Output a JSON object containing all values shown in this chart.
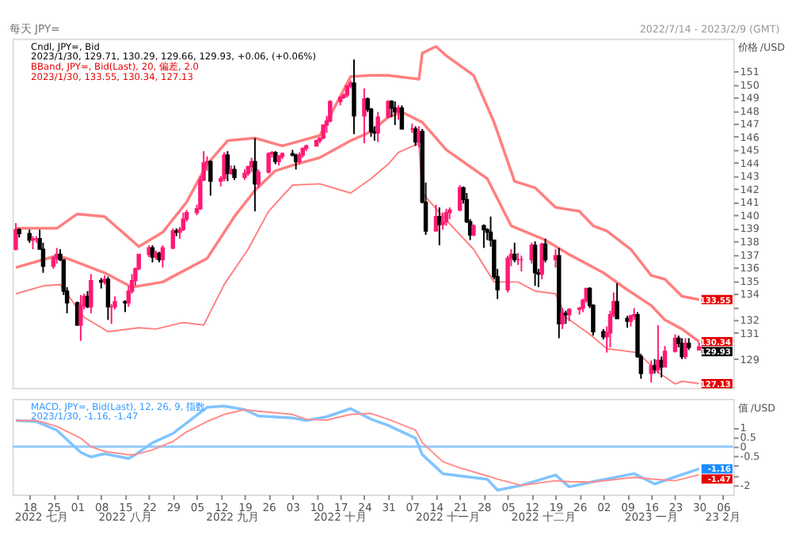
{
  "chart_data": [
    {
      "type": "candlestick",
      "title": "每天 JPY=",
      "subtitle": "2022/7/14 - 2023/2/9 (GMT)",
      "ylabel": "价格 /USD",
      "tick_labels": "y",
      "colors": [
        "#ff1a75",
        "#000000",
        "#000000",
        "#ff1a75",
        "#ff1a75",
        "#000000",
        "#000000",
        "#ff1a75",
        "#ff1a75",
        "#000000",
        "#000000",
        "#000000",
        "#000000",
        "#ff1a75",
        "#ff1a75",
        "#000000",
        "#ff1a75",
        "#000000",
        "#ff1a75",
        "#000000",
        "#ff1a75",
        "#ff1a75",
        "#000000",
        "#ff1a75",
        "#ff1a75",
        "#ff1a75",
        "#ff1a75",
        "#ff1a75",
        "#000000",
        "#ff1a75",
        "#000000",
        "#ff1a75",
        "#ff1a75",
        "#000000",
        "#ff1a75",
        "#ff1a75",
        "#ff1a75",
        "#ff1a75",
        "#ff1a75",
        "#ff1a75",
        "#ff1a75",
        "#000000",
        "#ff1a75",
        "#ff1a75",
        "#000000",
        "#ff1a75",
        "#000000",
        "#ff1a75",
        "#ff1a75",
        "#ff1a75",
        "#000000",
        "#ff1a75",
        "#ff1a75",
        "#ff1a75",
        "#000000",
        "#ff1a75",
        "#ff1a75",
        "#000000",
        "#000000",
        "#ff1a75",
        "#ff1a75",
        "#ff1a75",
        "#ff1a75",
        "#ff1a75",
        "#ff1a75",
        "#ff1a75",
        "#ff1a75",
        "#ff1a75",
        "#ff1a75",
        "#ff1a75",
        "#ff1a75",
        "#000000",
        "#ff1a75",
        "#000000",
        "#000000",
        "#000000",
        "#ff1a75",
        "#ff1a75",
        "#000000",
        "#000000",
        "#ff1a75",
        "#000000",
        "#ff1a75",
        "#000000",
        "#ff1a75",
        "#000000",
        "#000000",
        "#ff1a75",
        "#000000",
        "#ff1a75",
        "#ff1a75",
        "#ff1a75",
        "#ff1a75",
        "#000000",
        "#000000",
        "#000000",
        "#ff1a75",
        "#000000",
        "#000000",
        "#000000",
        "#000000",
        "#000000",
        "#ff1a75",
        "#ff1a75",
        "#000000",
        "#ff1a75",
        "#ff1a75",
        "#ff1a75",
        "#000000",
        "#000000",
        "#ff1a75",
        "#000000",
        "#ff1a75",
        "#000000",
        "#ff1a75",
        "#000000",
        "#ff1a75",
        "#ff1a75",
        "#ff1a75",
        "#ff1a75",
        "#000000",
        "#000000",
        "#000000",
        "#ff1a75",
        "#ff1a75",
        "#ff1a75",
        "#000000",
        "#000000",
        "#ff1a75",
        "#ff1a75",
        "#000000",
        "#000000",
        "#ff1a75",
        "#000000",
        "#ff1a75",
        "#000000",
        "#ff1a75",
        "#ff1a75",
        "#000000",
        "#000000",
        "#ff1a75",
        "#000000",
        "#ff1a75"
      ],
      "annotations": [
        "Cndl, JPY=, Bid",
        "2023/1/30, 129.71, 130.29, 129.66, 129.93, +0.06, (+0.06%)",
        "BBand, JPY=, Bid(Last), 20, 偏差, 2.0",
        "2023/1/30, 133.55, 130.34, 127.13",
        {
          "text": "133.55",
          "x": "2023-01-30",
          "y": 133.55
        },
        {
          "text": "130.34",
          "x": "2023-01-30",
          "y": 130.34
        },
        {
          "text": "129.93",
          "x": "2023-01-30",
          "y": 129.93
        },
        {
          "text": "127.13",
          "x": "2023-01-30",
          "y": 127.13
        }
      ],
      "xlim": [
        "2022-07-13",
        "2023-02-09"
      ],
      "ylim": [
        126.8,
        153.5
      ],
      "yticks": [
        129,
        131,
        132,
        {
          "value": 133,
          "label": null
        },
        134,
        135,
        136,
        137,
        138,
        139,
        140,
        141,
        142,
        143,
        144,
        145,
        146,
        147,
        148,
        149,
        150,
        151
      ],
      "x": [
        "2022-07-14",
        "2022-07-15",
        "2022-07-18",
        "2022-07-19",
        "2022-07-20",
        "2022-07-21",
        "2022-07-22",
        "2022-07-25",
        "2022-07-26",
        "2022-07-27",
        "2022-07-28",
        "2022-07-29",
        "2022-08-01",
        "2022-08-02",
        "2022-08-03",
        "2022-08-04",
        "2022-08-05",
        "2022-08-08",
        "2022-08-09",
        "2022-08-10",
        "2022-08-11",
        "2022-08-12",
        "2022-08-15",
        "2022-08-16",
        "2022-08-17",
        "2022-08-18",
        "2022-08-19",
        "2022-08-22",
        "2022-08-23",
        "2022-08-24",
        "2022-08-25",
        "2022-08-26",
        "2022-08-29",
        "2022-08-30",
        "2022-08-31",
        "2022-09-01",
        "2022-09-02",
        "2022-09-05",
        "2022-09-06",
        "2022-09-07",
        "2022-09-08",
        "2022-09-09",
        "2022-09-12",
        "2022-09-13",
        "2022-09-14",
        "2022-09-15",
        "2022-09-16",
        "2022-09-19",
        "2022-09-20",
        "2022-09-21",
        "2022-09-22",
        "2022-09-23",
        "2022-09-26",
        "2022-09-27",
        "2022-09-28",
        "2022-09-29",
        "2022-09-30",
        "2022-10-03",
        "2022-10-04",
        "2022-10-05",
        "2022-10-06",
        "2022-10-07",
        "2022-10-10",
        "2022-10-11",
        "2022-10-12",
        "2022-10-13",
        "2022-10-14",
        "2022-10-17",
        "2022-10-18",
        "2022-10-19",
        "2022-10-20",
        "2022-10-21",
        "2022-10-24",
        "2022-10-25",
        "2022-10-26",
        "2022-10-27",
        "2022-10-28",
        "2022-10-31",
        "2022-11-01",
        "2022-11-02",
        "2022-11-03",
        "2022-11-04",
        "2022-11-07",
        "2022-11-08",
        "2022-11-09",
        "2022-11-10",
        "2022-11-11",
        "2022-11-14",
        "2022-11-15",
        "2022-11-16",
        "2022-11-17",
        "2022-11-18",
        "2022-11-21",
        "2022-11-22",
        "2022-11-23",
        "2022-11-24",
        "2022-11-25",
        "2022-11-28",
        "2022-11-29",
        "2022-11-30",
        "2022-12-01",
        "2022-12-02",
        "2022-12-05",
        "2022-12-06",
        "2022-12-07",
        "2022-12-08",
        "2022-12-09",
        "2022-12-12",
        "2022-12-13",
        "2022-12-14",
        "2022-12-15",
        "2022-12-16",
        "2022-12-19",
        "2022-12-20",
        "2022-12-21",
        "2022-12-22",
        "2022-12-23",
        "2022-12-26",
        "2022-12-27",
        "2022-12-28",
        "2022-12-29",
        "2022-12-30",
        "2023-01-02",
        "2023-01-03",
        "2023-01-04",
        "2023-01-05",
        "2023-01-06",
        "2023-01-09",
        "2023-01-10",
        "2023-01-11",
        "2023-01-12",
        "2023-01-13",
        "2023-01-16",
        "2023-01-17",
        "2023-01-18",
        "2023-01-19",
        "2023-01-20",
        "2023-01-23",
        "2023-01-24",
        "2023-01-25",
        "2023-01-26",
        "2023-01-27",
        "2023-01-30"
      ],
      "ohlc": [
        [
          137.4,
          139.4,
          137.3,
          138.9
        ],
        [
          138.9,
          139.0,
          138.3,
          138.6
        ],
        [
          138.6,
          138.9,
          137.9,
          138.1
        ],
        [
          138.1,
          138.4,
          137.4,
          138.2
        ],
        [
          138.2,
          138.4,
          137.9,
          138.2
        ],
        [
          138.2,
          138.9,
          137.4,
          137.4
        ],
        [
          137.4,
          137.9,
          135.6,
          136.1
        ],
        [
          136.1,
          136.9,
          135.9,
          136.7
        ],
        [
          136.7,
          137.5,
          136.3,
          137.0
        ],
        [
          137.0,
          137.4,
          136.5,
          136.6
        ],
        [
          136.6,
          136.6,
          133.9,
          134.2
        ],
        [
          134.2,
          134.5,
          132.5,
          133.3
        ],
        [
          133.3,
          133.4,
          131.6,
          131.6
        ],
        [
          131.6,
          133.9,
          130.4,
          133.1
        ],
        [
          133.1,
          134.0,
          132.8,
          133.8
        ],
        [
          133.8,
          134.2,
          132.9,
          133.0
        ],
        [
          133.0,
          135.5,
          132.5,
          135.0
        ],
        [
          135.0,
          135.2,
          134.4,
          134.9
        ],
        [
          134.9,
          135.4,
          134.7,
          135.1
        ],
        [
          135.1,
          135.3,
          132.0,
          133.0
        ],
        [
          133.0,
          133.2,
          131.7,
          133.0
        ],
        [
          133.0,
          133.8,
          132.8,
          133.4
        ],
        [
          133.4,
          133.5,
          132.6,
          133.3
        ],
        [
          133.3,
          134.6,
          133.0,
          134.2
        ],
        [
          134.2,
          135.5,
          134.0,
          135.0
        ],
        [
          135.0,
          136.0,
          134.6,
          135.9
        ],
        [
          135.9,
          137.0,
          135.8,
          137.0
        ],
        [
          137.0,
          137.7,
          136.8,
          137.5
        ],
        [
          137.5,
          137.7,
          136.4,
          136.8
        ],
        [
          136.8,
          137.3,
          136.6,
          137.1
        ],
        [
          137.1,
          137.2,
          136.4,
          136.6
        ],
        [
          136.6,
          137.7,
          136.0,
          137.5
        ],
        [
          137.5,
          139.0,
          137.4,
          138.8
        ],
        [
          138.8,
          139.0,
          138.4,
          138.7
        ],
        [
          138.7,
          139.1,
          138.2,
          138.9
        ],
        [
          138.9,
          140.2,
          138.8,
          139.7
        ],
        [
          139.7,
          140.4,
          139.5,
          140.2
        ],
        [
          140.2,
          140.8,
          140.0,
          140.5
        ],
        [
          140.5,
          143.0,
          140.4,
          142.7
        ],
        [
          142.7,
          144.9,
          142.6,
          144.0
        ],
        [
          144.0,
          144.5,
          143.4,
          144.1
        ],
        [
          144.1,
          144.2,
          141.5,
          142.6
        ],
        [
          142.6,
          143.0,
          142.2,
          142.8
        ],
        [
          142.8,
          144.8,
          142.6,
          144.6
        ],
        [
          144.6,
          144.9,
          142.6,
          143.2
        ],
        [
          143.2,
          143.8,
          143.1,
          143.5
        ],
        [
          143.5,
          143.8,
          142.7,
          142.9
        ],
        [
          142.9,
          143.5,
          142.7,
          143.2
        ],
        [
          143.2,
          143.8,
          143.0,
          143.7
        ],
        [
          143.7,
          144.4,
          143.3,
          144.1
        ],
        [
          144.1,
          145.9,
          140.3,
          142.4
        ],
        [
          142.4,
          143.5,
          142.1,
          143.3
        ],
        [
          143.3,
          144.8,
          143.2,
          144.7
        ],
        [
          144.7,
          144.9,
          144.4,
          144.8
        ],
        [
          144.8,
          144.9,
          143.9,
          144.1
        ],
        [
          144.1,
          144.6,
          143.8,
          144.5
        ],
        [
          144.5,
          144.8,
          144.3,
          144.7
        ],
        [
          144.7,
          145.0,
          144.5,
          144.6
        ],
        [
          144.6,
          144.7,
          143.5,
          144.1
        ],
        [
          144.1,
          144.8,
          143.9,
          144.6
        ],
        [
          144.6,
          145.2,
          144.4,
          145.1
        ],
        [
          145.1,
          145.4,
          144.9,
          145.3
        ],
        [
          145.3,
          145.8,
          145.3,
          145.7
        ],
        [
          145.7,
          145.9,
          145.5,
          145.9
        ],
        [
          145.9,
          146.9,
          145.8,
          146.9
        ],
        [
          146.9,
          147.6,
          146.3,
          147.2
        ],
        [
          147.2,
          148.8,
          147.1,
          148.7
        ],
        [
          148.7,
          149.1,
          148.4,
          149.0
        ],
        [
          149.0,
          149.3,
          148.9,
          149.2
        ],
        [
          149.2,
          149.9,
          149.0,
          149.9
        ],
        [
          149.9,
          150.3,
          149.7,
          150.1
        ],
        [
          150.1,
          151.9,
          146.2,
          147.6
        ],
        [
          147.6,
          149.7,
          145.5,
          148.9
        ],
        [
          148.9,
          149.0,
          147.9,
          148.1
        ],
        [
          148.1,
          148.2,
          146.0,
          146.4
        ],
        [
          146.4,
          146.8,
          145.7,
          146.3
        ],
        [
          146.3,
          147.9,
          145.6,
          147.5
        ],
        [
          147.5,
          148.8,
          147.4,
          148.7
        ],
        [
          148.7,
          148.8,
          147.5,
          148.2
        ],
        [
          148.2,
          148.7,
          146.9,
          147.9
        ],
        [
          147.9,
          148.4,
          147.3,
          148.2
        ],
        [
          148.2,
          148.4,
          146.6,
          146.6
        ],
        [
          146.6,
          147.0,
          146.3,
          146.6
        ],
        [
          146.6,
          146.8,
          145.3,
          145.6
        ],
        [
          145.6,
          146.8,
          145.2,
          146.4
        ],
        [
          146.4,
          146.6,
          140.9,
          141.0
        ],
        [
          141.0,
          142.5,
          138.5,
          138.8
        ],
        [
          138.8,
          140.8,
          138.8,
          139.9
        ],
        [
          139.9,
          140.6,
          137.7,
          139.3
        ],
        [
          139.3,
          140.2,
          138.9,
          139.5
        ],
        [
          139.5,
          140.5,
          139.2,
          140.2
        ],
        [
          140.2,
          140.6,
          139.7,
          140.4
        ],
        [
          140.4,
          142.3,
          140.3,
          142.1
        ],
        [
          142.1,
          142.2,
          140.9,
          141.2
        ],
        [
          141.2,
          141.7,
          139.4,
          139.5
        ],
        [
          139.5,
          139.7,
          138.1,
          138.5
        ],
        [
          138.5,
          139.3,
          138.4,
          139.2
        ],
        [
          139.2,
          139.3,
          137.5,
          138.9
        ],
        [
          138.9,
          139.0,
          138.1,
          138.7
        ],
        [
          138.7,
          139.9,
          137.6,
          138.1
        ],
        [
          138.1,
          138.1,
          135.1,
          135.3
        ],
        [
          135.3,
          135.9,
          133.6,
          134.3
        ],
        [
          134.3,
          136.9,
          134.1,
          136.7
        ],
        [
          136.7,
          137.4,
          136.1,
          137.0
        ],
        [
          137.0,
          137.9,
          136.4,
          136.6
        ],
        [
          136.6,
          137.1,
          136.2,
          136.6
        ],
        [
          136.6,
          136.9,
          135.7,
          136.6
        ],
        [
          136.6,
          137.9,
          136.3,
          137.7
        ],
        [
          137.7,
          138.0,
          134.6,
          135.6
        ],
        [
          135.6,
          135.9,
          134.5,
          135.5
        ],
        [
          135.5,
          137.9,
          135.1,
          137.8
        ],
        [
          137.8,
          138.2,
          136.4,
          136.6
        ],
        [
          136.6,
          137.4,
          136.0,
          136.9
        ],
        [
          136.9,
          137.5,
          130.6,
          131.7
        ],
        [
          131.7,
          132.9,
          131.3,
          132.5
        ],
        [
          132.5,
          132.7,
          131.7,
          132.4
        ],
        [
          132.4,
          132.9,
          131.9,
          132.8
        ],
        [
          132.8,
          133.0,
          132.4,
          132.9
        ],
        [
          132.9,
          133.6,
          132.6,
          133.5
        ],
        [
          133.5,
          134.4,
          133.3,
          134.4
        ],
        [
          134.4,
          134.5,
          132.9,
          133.1
        ],
        [
          133.1,
          133.2,
          130.8,
          131.1
        ],
        [
          131.1,
          131.3,
          130.5,
          130.7
        ],
        [
          130.7,
          131.5,
          129.5,
          131.0
        ],
        [
          131.0,
          132.7,
          129.9,
          132.4
        ],
        [
          132.4,
          134.1,
          132.2,
          133.4
        ],
        [
          133.4,
          134.8,
          132.1,
          132.1
        ],
        [
          132.1,
          132.3,
          131.4,
          131.9
        ],
        [
          131.9,
          132.4,
          131.5,
          132.3
        ],
        [
          132.3,
          132.9,
          132.0,
          132.4
        ],
        [
          132.4,
          132.6,
          129.1,
          129.2
        ],
        [
          129.2,
          129.4,
          127.5,
          127.9
        ],
        [
          127.9,
          128.9,
          127.2,
          128.5
        ],
        [
          128.5,
          129.0,
          127.9,
          128.2
        ],
        [
          128.2,
          131.6,
          127.9,
          128.9
        ],
        [
          128.9,
          129.2,
          127.6,
          128.4
        ],
        [
          128.4,
          130.0,
          128.4,
          129.6
        ],
        [
          129.6,
          130.9,
          129.5,
          130.6
        ],
        [
          130.6,
          130.8,
          129.9,
          130.2
        ],
        [
          130.2,
          130.6,
          129.0,
          129.2
        ],
        [
          129.2,
          130.6,
          129.0,
          130.2
        ],
        [
          130.2,
          130.6,
          129.7,
          129.9
        ],
        [
          129.71,
          130.29,
          129.66,
          129.93
        ]
      ],
      "series": [
        {
          "type": "line",
          "color": "#ff7f7f",
          "x": [
            "2022-07-14",
            "2022-07-26",
            "2022-08-01",
            "2022-08-09",
            "2022-08-16",
            "2022-08-19",
            "2022-08-26",
            "2022-09-02",
            "2022-09-08",
            "2022-09-14",
            "2022-09-22",
            "2022-09-30",
            "2022-10-11",
            "2022-10-20",
            "2022-10-26",
            "2022-10-31",
            "2022-11-09",
            "2022-11-10",
            "2022-11-14",
            "2022-11-17",
            "2022-11-25",
            "2022-12-01",
            "2022-12-07",
            "2022-12-13",
            "2022-12-19",
            "2022-12-26",
            "2022-12-30",
            "2023-01-03",
            "2023-01-10",
            "2023-01-16",
            "2023-01-20",
            "2023-01-25",
            "2023-01-30"
          ],
          "values": [
            139.0,
            139.0,
            140.1,
            139.9,
            138.3,
            137.6,
            138.7,
            141.0,
            143.9,
            145.7,
            145.9,
            145.3,
            146.1,
            150.6,
            150.7,
            150.7,
            150.4,
            152.4,
            152.9,
            152.2,
            150.7,
            147.1,
            142.6,
            142.1,
            140.6,
            140.3,
            139.2,
            138.8,
            137.4,
            135.4,
            135.1,
            133.8,
            133.55
          ]
        },
        {
          "type": "line",
          "color": "#ff7f7f",
          "x": [
            "2022-07-14",
            "2022-07-26",
            "2022-07-29",
            "2022-08-09",
            "2022-08-17",
            "2022-08-26",
            "2022-09-08",
            "2022-09-16",
            "2022-09-22",
            "2022-09-28",
            "2022-10-04",
            "2022-10-11",
            "2022-10-20",
            "2022-10-26",
            "2022-10-31",
            "2022-11-04",
            "2022-11-10",
            "2022-11-17",
            "2022-11-29",
            "2022-12-06",
            "2022-12-16",
            "2022-12-23",
            "2023-01-02",
            "2023-01-09",
            "2023-01-16",
            "2023-01-20",
            "2023-01-25",
            "2023-01-30"
          ],
          "values": [
            136.0,
            136.9,
            136.7,
            135.6,
            134.5,
            134.9,
            136.7,
            139.9,
            141.9,
            143.4,
            143.9,
            144.4,
            145.7,
            146.4,
            147.5,
            147.9,
            147.1,
            145.0,
            142.8,
            139.2,
            138.1,
            137.0,
            135.6,
            134.3,
            133.1,
            132.0,
            131.3,
            130.34
          ]
        },
        {
          "type": "line",
          "color": "#ff7f7f",
          "x": [
            "2022-07-14",
            "2022-07-22",
            "2022-07-27",
            "2022-08-03",
            "2022-08-10",
            "2022-08-19",
            "2022-08-24",
            "2022-09-01",
            "2022-09-07",
            "2022-09-13",
            "2022-09-20",
            "2022-09-26",
            "2022-10-03",
            "2022-10-11",
            "2022-10-20",
            "2022-10-26",
            "2022-10-31",
            "2022-11-03",
            "2022-11-09",
            "2022-11-10",
            "2022-11-16",
            "2022-11-25",
            "2022-12-01",
            "2022-12-08",
            "2022-12-13",
            "2022-12-19",
            "2022-12-22",
            "2022-12-29",
            "2023-01-03",
            "2023-01-12",
            "2023-01-18",
            "2023-01-23",
            "2023-01-25",
            "2023-01-30"
          ],
          "values": [
            134.0,
            134.6,
            134.7,
            132.2,
            131.1,
            131.4,
            131.3,
            131.8,
            131.6,
            134.7,
            137.4,
            140.3,
            142.3,
            142.4,
            141.7,
            142.8,
            143.9,
            144.8,
            145.5,
            141.7,
            139.9,
            137.4,
            134.9,
            134.9,
            134.2,
            134.0,
            132.2,
            130.9,
            129.8,
            129.5,
            128.0,
            127.1,
            127.3,
            127.13
          ]
        }
      ]
    },
    {
      "type": "line",
      "ylabel": "值 /USD",
      "annotations": [
        "MACD, JPY=, Bid(Last), 12, 26, 9, 指数",
        "2023/1/30, -1.16, -1.47",
        {
          "text": "-1.16",
          "x": "2023-01-30",
          "y": -1.16
        },
        {
          "text": "-1.47",
          "x": "2023-01-30",
          "y": -1.47
        },
        "2022 七月",
        "2022 八月",
        "2022 九月",
        "2022 十月",
        "2022 十一月",
        "2022 十二月",
        "2023 一月",
        "23 2月"
      ],
      "xlim": [
        "2022-07-13",
        "2023-02-09"
      ],
      "xticks": [
        {
          "value": "2022-07-18",
          "label": "18"
        },
        {
          "value": "2022-07-25",
          "label": "25"
        },
        {
          "value": "2022-08-01",
          "label": "01"
        },
        {
          "value": "2022-08-08",
          "label": "08"
        },
        {
          "value": "2022-08-15",
          "label": "15"
        },
        {
          "value": "2022-08-22",
          "label": "22"
        },
        {
          "value": "2022-08-29",
          "label": "29"
        },
        {
          "value": "2022-09-05",
          "label": "05"
        },
        {
          "value": "2022-09-12",
          "label": "12"
        },
        {
          "value": "2022-09-19",
          "label": "19"
        },
        {
          "value": "2022-09-26",
          "label": "26"
        },
        {
          "value": "2022-10-03",
          "label": "03"
        },
        {
          "value": "2022-10-10",
          "label": "10"
        },
        {
          "value": "2022-10-17",
          "label": "17"
        },
        {
          "value": "2022-10-24",
          "label": "24"
        },
        {
          "value": "2022-10-31",
          "label": "31"
        },
        {
          "value": "2022-11-07",
          "label": "07"
        },
        {
          "value": "2022-11-14",
          "label": "14"
        },
        {
          "value": "2022-11-21",
          "label": "21"
        },
        {
          "value": "2022-11-28",
          "label": "28"
        },
        {
          "value": "2022-12-05",
          "label": "05"
        },
        {
          "value": "2022-12-12",
          "label": "12"
        },
        {
          "value": "2022-12-19",
          "label": "19"
        },
        {
          "value": "2022-12-26",
          "label": "26"
        },
        {
          "value": "2023-01-02",
          "label": "02"
        },
        {
          "value": "2023-01-09",
          "label": "09"
        },
        {
          "value": "2023-01-16",
          "label": "16"
        },
        {
          "value": "2023-01-23",
          "label": "23"
        },
        {
          "value": "2023-01-30",
          "label": "30"
        },
        {
          "value": "2023-02-06",
          "label": "06"
        }
      ],
      "ylim": [
        -2.5,
        2.5
      ],
      "yticks": [
        1,
        0.5,
        0,
        -0.5,
        {
          "value": -1,
          "label": null
        },
        {
          "value": -1.5,
          "label": null
        },
        -2
      ],
      "ref_lines": [
        {
          "axis": "y",
          "value": 0,
          "color": "#99ccff"
        }
      ],
      "series": [
        {
          "color": "#80c4ff",
          "x": [
            "2022-07-14",
            "2022-07-20",
            "2022-07-26",
            "2022-08-02",
            "2022-08-05",
            "2022-08-09",
            "2022-08-16",
            "2022-08-18",
            "2022-08-23",
            "2022-08-29",
            "2022-09-02",
            "2022-09-08",
            "2022-09-13",
            "2022-09-19",
            "2022-09-23",
            "2022-10-03",
            "2022-10-07",
            "2022-10-13",
            "2022-10-20",
            "2022-10-26",
            "2022-10-31",
            "2022-11-08",
            "2022-11-10",
            "2022-11-16",
            "2022-11-21",
            "2022-11-29",
            "2022-12-02",
            "2022-12-09",
            "2022-12-19",
            "2022-12-23",
            "2022-12-30",
            "2023-01-11",
            "2023-01-17",
            "2023-01-23",
            "2023-01-30"
          ],
          "values": [
            1.36,
            1.31,
            0.86,
            -0.3,
            -0.54,
            -0.37,
            -0.62,
            -0.42,
            0.2,
            0.69,
            1.23,
            2.05,
            2.12,
            1.93,
            1.6,
            1.5,
            1.36,
            1.56,
            1.98,
            1.43,
            1.11,
            0.44,
            -0.42,
            -1.41,
            -1.53,
            -1.7,
            -2.27,
            -2.02,
            -1.48,
            -2.1,
            -1.83,
            -1.41,
            -1.95,
            -1.58,
            -1.16
          ]
        },
        {
          "color": "#ff8c8c",
          "x": [
            "2022-07-14",
            "2022-07-20",
            "2022-07-26",
            "2022-08-02",
            "2022-08-05",
            "2022-08-09",
            "2022-08-16",
            "2022-08-18",
            "2022-08-23",
            "2022-08-29",
            "2022-09-02",
            "2022-09-08",
            "2022-09-13",
            "2022-09-19",
            "2022-09-23",
            "2022-10-03",
            "2022-10-07",
            "2022-10-13",
            "2022-10-20",
            "2022-10-26",
            "2022-10-31",
            "2022-11-08",
            "2022-11-10",
            "2022-11-16",
            "2022-11-21",
            "2022-11-29",
            "2022-12-02",
            "2022-12-09",
            "2022-12-19",
            "2022-12-23",
            "2022-12-30",
            "2023-01-11",
            "2023-01-17",
            "2023-01-23",
            "2023-01-30"
          ],
          "values": [
            1.36,
            1.36,
            1.06,
            0.44,
            0,
            -0.25,
            -0.42,
            -0.42,
            -0.17,
            0.27,
            0.77,
            1.31,
            1.68,
            1.93,
            1.85,
            1.68,
            1.43,
            1.38,
            1.68,
            1.73,
            1.43,
            0.86,
            0.2,
            -0.79,
            -1.11,
            -1.53,
            -1.7,
            -2.02,
            -1.78,
            -1.83,
            -1.85,
            -1.6,
            -1.7,
            -1.78,
            -1.47
          ]
        }
      ]
    }
  ]
}
